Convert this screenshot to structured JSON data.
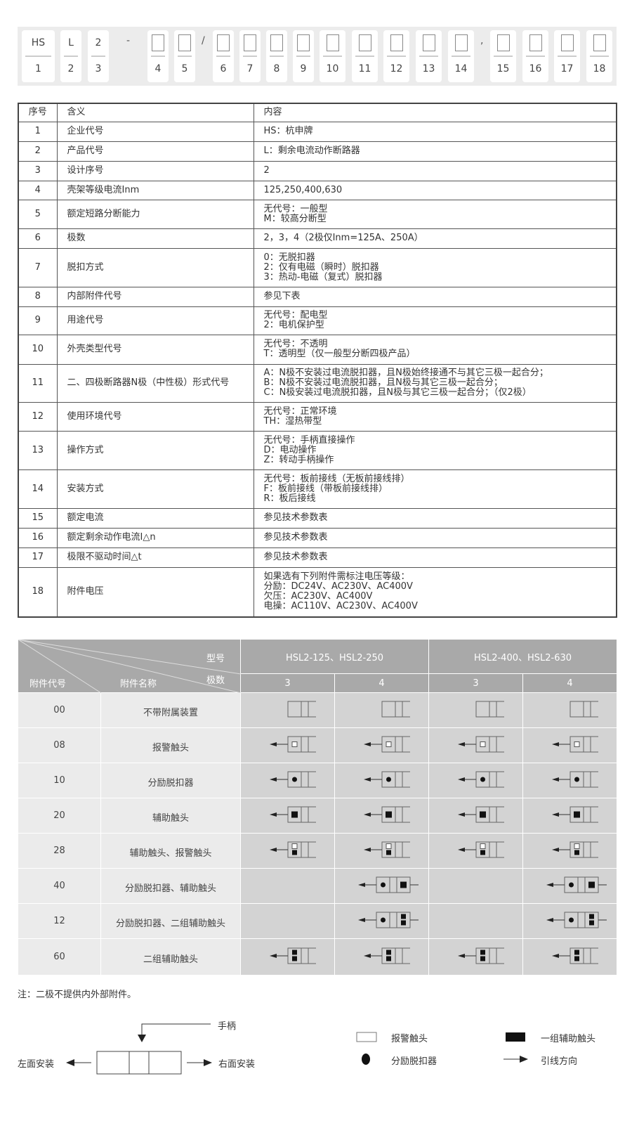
{
  "code": {
    "boxes": [
      {
        "top": "HS",
        "num": "1"
      },
      {
        "top": "L",
        "num": "2"
      },
      {
        "top": "2",
        "num": "3"
      },
      {
        "top": "",
        "num": "4"
      },
      {
        "top": "",
        "num": "5"
      },
      {
        "top": "",
        "num": "6"
      },
      {
        "top": "",
        "num": "7"
      },
      {
        "top": "",
        "num": "8"
      },
      {
        "top": "",
        "num": "9"
      },
      {
        "top": "",
        "num": "10"
      },
      {
        "top": "",
        "num": "11"
      },
      {
        "top": "",
        "num": "12"
      },
      {
        "top": "",
        "num": "13"
      },
      {
        "top": "",
        "num": "14"
      },
      {
        "top": "",
        "num": "15"
      },
      {
        "top": "",
        "num": "16"
      },
      {
        "top": "",
        "num": "17"
      },
      {
        "top": "",
        "num": "18"
      }
    ],
    "separators": [
      "-",
      "/",
      ","
    ]
  },
  "spec": {
    "headers": [
      "序号",
      "含义",
      "内容"
    ],
    "rows": [
      [
        "1",
        "企业代号",
        "HS：杭申牌"
      ],
      [
        "2",
        "产品代号",
        "L：剩余电流动作断路器"
      ],
      [
        "3",
        "设计序号",
        "2"
      ],
      [
        "4",
        "壳架等级电流Inm",
        "125,250,400,630"
      ],
      [
        "5",
        "额定短路分断能力",
        "无代号：一般型\nM：较高分断型"
      ],
      [
        "6",
        "极数",
        "2，3，4（2极仅Inm=125A、250A）"
      ],
      [
        "7",
        "脱扣方式",
        "0：无脱扣器\n2：仅有电磁（瞬时）脱扣器\n3：热动-电磁（复式）脱扣器"
      ],
      [
        "8",
        "内部附件代号",
        "参见下表"
      ],
      [
        "9",
        "用途代号",
        "无代号：配电型\n2：电机保护型"
      ],
      [
        "10",
        "外壳类型代号",
        "无代号：不透明\nT：透明型（仅一般型分断四极产品）"
      ],
      [
        "11",
        "二、四极断路器N极（中性极）形式代号",
        "A：N极不安装过电流脱扣器，且N极始终接通不与其它三极一起合分；\nB：N极不安装过电流脱扣器，且N极与其它三极一起合分；\nC：N极安装过电流脱扣器，且N极与其它三极一起合分；（仅2极）"
      ],
      [
        "12",
        "使用环境代号",
        "无代号：正常环境\nTH：湿热带型"
      ],
      [
        "13",
        "操作方式",
        "无代号：手柄直接操作\nD：电动操作\nZ：转动手柄操作"
      ],
      [
        "14",
        "安装方式",
        "无代号：板前接线（无板前接线排）\nF：板前接线（带板前接线排）\nR：板后接线"
      ],
      [
        "15",
        "额定电流",
        "参见技术参数表"
      ],
      [
        "16",
        "额定剩余动作电流I△n",
        "参见技术参数表"
      ],
      [
        "17",
        "极限不驱动时间△t",
        "参见技术参数表"
      ],
      [
        "18",
        "附件电压",
        "如果选有下列附件需标注电压等级：\n分励：DC24V、AC230V、AC400V\n欠压：AC230V、AC400V\n电操：AC110V、AC230V、AC400V"
      ]
    ]
  },
  "accessory": {
    "h_model": "型号",
    "h_poles": "极数",
    "h_code": "附件代号",
    "h_name": "附件名称",
    "models": [
      "HSL2-125、HSL2-250",
      "HSL2-400、HSL2-630"
    ],
    "poles": [
      "3",
      "4",
      "3",
      "4"
    ],
    "rows": [
      {
        "code": "00",
        "name": "不带附属装置",
        "symbol": "none",
        "cols": [
          true,
          true,
          true,
          true
        ]
      },
      {
        "code": "08",
        "name": "报警触头",
        "symbol": "alarm",
        "cols": [
          true,
          true,
          true,
          true
        ]
      },
      {
        "code": "10",
        "name": "分励脱扣器",
        "symbol": "shunt",
        "cols": [
          true,
          true,
          true,
          true
        ]
      },
      {
        "code": "20",
        "name": "辅助触头",
        "symbol": "aux",
        "cols": [
          true,
          true,
          true,
          true
        ]
      },
      {
        "code": "28",
        "name": "辅助触头、报警触头",
        "symbol": "aux-alarm",
        "cols": [
          true,
          true,
          true,
          true
        ]
      },
      {
        "code": "40",
        "name": "分励脱扣器、辅助触头",
        "symbol": "shunt-aux",
        "cols": [
          false,
          true,
          false,
          true
        ]
      },
      {
        "code": "12",
        "name": "分励脱扣器、二组辅助触头",
        "symbol": "shunt-2aux",
        "cols": [
          false,
          true,
          false,
          true
        ]
      },
      {
        "code": "60",
        "name": "二组辅助触头",
        "symbol": "2aux",
        "cols": [
          true,
          true,
          true,
          true
        ]
      }
    ]
  },
  "note": "注：二极不提供内外部附件。",
  "legend": {
    "handle": "手柄",
    "left": "左面安装",
    "right": "右面安装",
    "alarm": "报警触头",
    "aux": "一组辅助触头",
    "shunt": "分励脱扣器",
    "lead": "引线方向"
  },
  "colors": {
    "header_bg": "#a9a9a9",
    "left_bg": "#ebebeb",
    "right_bg": "#d3d3d3",
    "border": "#444444"
  }
}
